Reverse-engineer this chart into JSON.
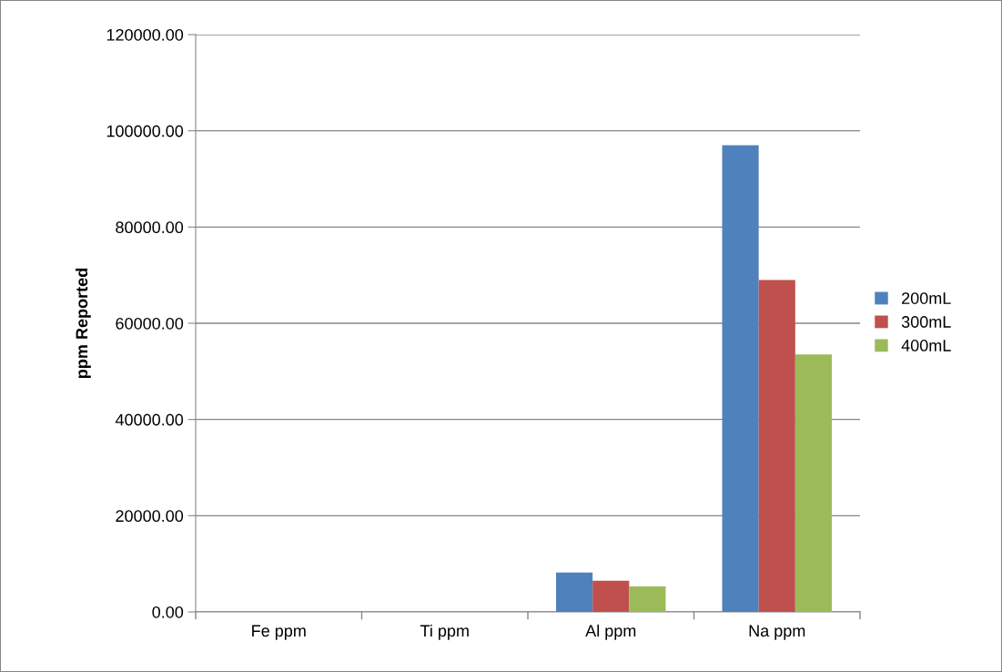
{
  "chart_data": {
    "type": "bar",
    "ylabel": "ppm Reported",
    "categories": [
      "Fe ppm",
      "Ti ppm",
      "Al ppm",
      "Na ppm"
    ],
    "series": [
      {
        "name": "200mL",
        "color": "#4f81bd",
        "values": [
          0,
          0,
          8200,
          97000
        ]
      },
      {
        "name": "300mL",
        "color": "#c0504d",
        "values": [
          0,
          0,
          6500,
          69000
        ]
      },
      {
        "name": "400mL",
        "color": "#9bbb59",
        "values": [
          0,
          0,
          5300,
          53500
        ]
      }
    ],
    "ylim": [
      0,
      120000
    ],
    "yticks": [
      {
        "value": 0,
        "label": "0.00"
      },
      {
        "value": 20000,
        "label": "20000.00"
      },
      {
        "value": 40000,
        "label": "40000.00"
      },
      {
        "value": 60000,
        "label": "60000.00"
      },
      {
        "value": 80000,
        "label": "80000.00"
      },
      {
        "value": 100000,
        "label": "100000.00"
      },
      {
        "value": 120000,
        "label": "120000.00"
      }
    ],
    "grid": "y",
    "legend": "right"
  }
}
